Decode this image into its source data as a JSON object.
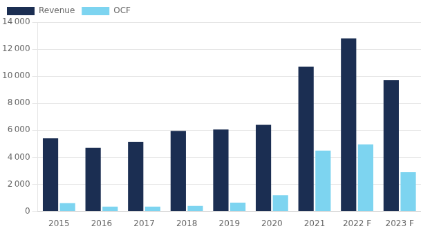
{
  "chart_data": {
    "type": "bar",
    "categories": [
      "2015",
      "2016",
      "2017",
      "2018",
      "2019",
      "2020",
      "2021",
      "2022 F",
      "2023 F"
    ],
    "series": [
      {
        "name": "Revenue",
        "color": "#1b2e52",
        "values": [
          5400,
          4700,
          5150,
          5950,
          6050,
          6400,
          10700,
          12800,
          9700
        ]
      },
      {
        "name": "OCF",
        "color": "#7dd4f0",
        "values": [
          600,
          350,
          350,
          400,
          650,
          1200,
          4500,
          4950,
          2900
        ]
      }
    ],
    "ylim": [
      0,
      14000
    ],
    "yticks": [
      0,
      {
        "value": 2000,
        "label": "2 000"
      },
      {
        "value": 4000,
        "label": "4 000"
      },
      {
        "value": 6000,
        "label": "6 000"
      },
      {
        "value": 8000,
        "label": "8 000"
      },
      {
        "value": 10000,
        "label": "10 000"
      },
      {
        "value": 12000,
        "label": "12 000"
      },
      {
        "value": 14000,
        "label": "14 000"
      }
    ],
    "grid": true,
    "legend": "upper left"
  }
}
